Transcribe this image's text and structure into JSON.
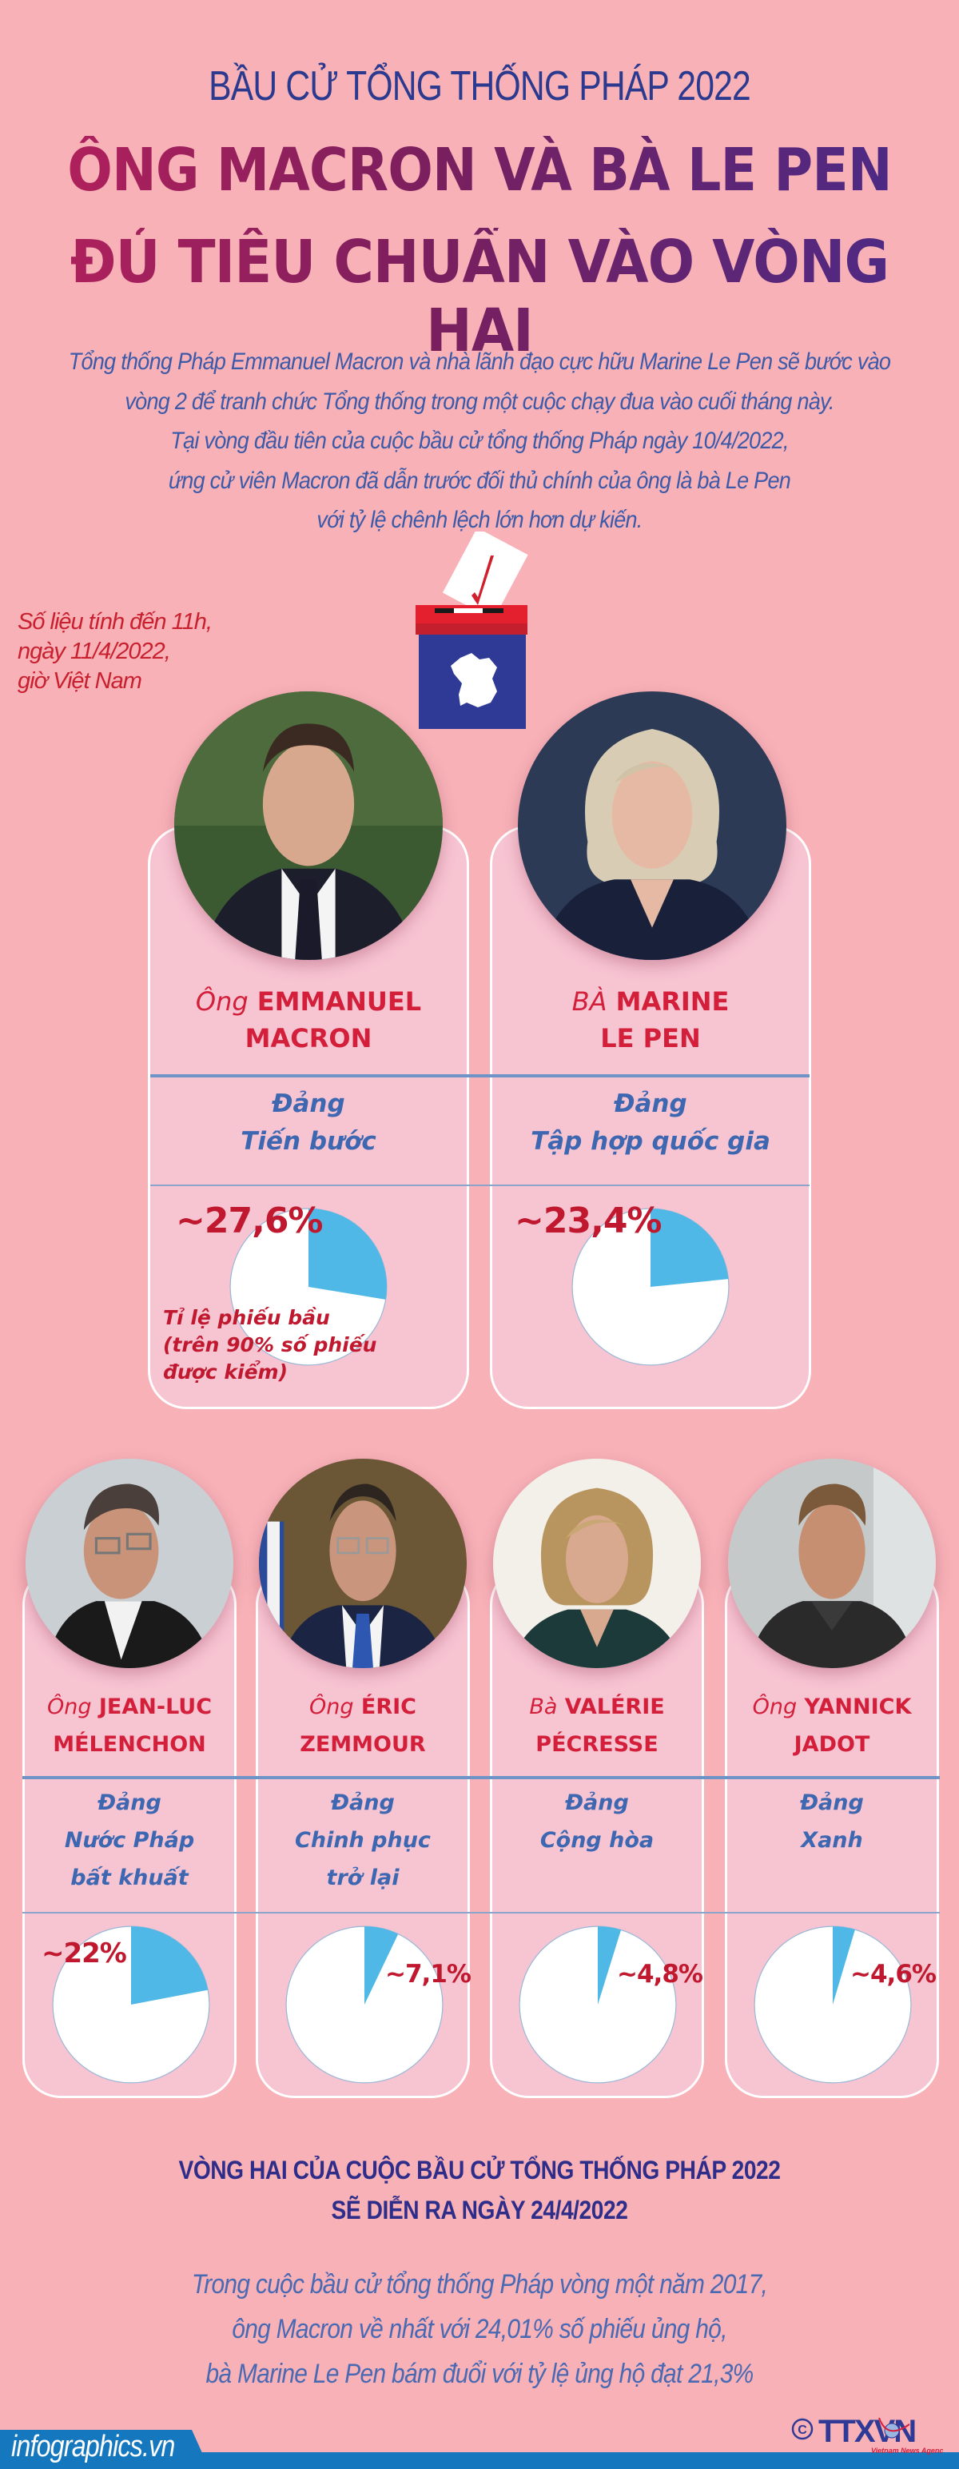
{
  "header": {
    "kicker": "BẦU CỬ TỔNG THỐNG PHÁP 2022",
    "headline_line1": "ÔNG MACRON VÀ BÀ LE PEN",
    "headline_line2": "ĐỦ TIÊU CHUẨN VÀO VÒNG HAI"
  },
  "intro": [
    "Tổng thống Pháp Emmanuel Macron và nhà lãnh đạo cực hữu Marine Le Pen sẽ bước vào",
    "vòng 2 để tranh chức Tổng thống trong một cuộc chạy đua vào cuối tháng này.",
    "Tại vòng đầu tiên của cuộc bầu cử tổng thống Pháp ngày 10/4/2022,",
    "ứng cử viên Macron đã dẫn trước đối thủ chính của ông là bà Le Pen",
    "với tỷ lệ chênh lệch lớn hơn dự kiến."
  ],
  "data_note": [
    "Số liệu tính đến 11h,",
    "ngày 11/4/2022,",
    "giờ Việt Nam"
  ],
  "icons": {
    "ballot_box": "ballot-box-france-icon",
    "check": "checkmark-icon",
    "copyright": "copyright-icon",
    "globe": "globe-icon"
  },
  "colors": {
    "background": "#f7b1b7",
    "card": "#f7c4d2",
    "pie_share": "#4fb8e6",
    "pie_rest": "#ffffff",
    "name_red": "#d31f3a",
    "party_blue": "#3d67b0",
    "footer_blue": "#1577bd"
  },
  "vote_label": "Tỉ lệ phiếu bầu (trên 90% số phiếu được kiểm)",
  "vote_label_lines": [
    "Tỉ lệ phiếu bầu",
    "(trên 90% số phiếu",
    "được kiểm)"
  ],
  "candidates": [
    {
      "honorific": "Ông",
      "name_line1": "EMMANUEL",
      "name_line2": "MACRON",
      "party_line0": "Đảng",
      "party_line1": "Tiến bước",
      "party_line2": "",
      "pct_label": "~27,6%",
      "pct": 27.6
    },
    {
      "honorific": "BÀ",
      "name_line1": "MARINE",
      "name_line2": "LE PEN",
      "party_line0": "Đảng",
      "party_line1": "Tập hợp quốc gia",
      "party_line2": "",
      "pct_label": "~23,4%",
      "pct": 23.4
    },
    {
      "honorific": "Ông",
      "name_line1": "JEAN-LUC",
      "name_line2": "MÉLENCHON",
      "party_line0": "Đảng",
      "party_line1": "Nước Pháp",
      "party_line2": "bất khuất",
      "pct_label": "~22%",
      "pct": 22
    },
    {
      "honorific": "Ông",
      "name_line1": "ÉRIC",
      "name_line2": "ZEMMOUR",
      "party_line0": "Đảng",
      "party_line1": "Chinh phục",
      "party_line2": "trở lại",
      "pct_label": "~7,1%",
      "pct": 7.1
    },
    {
      "honorific": "Bà",
      "name_line1": "VALÉRIE",
      "name_line2": "PÉCRESSE",
      "party_line0": "Đảng",
      "party_line1": "Cộng hòa",
      "party_line2": "",
      "pct_label": "~4,8%",
      "pct": 4.8
    },
    {
      "honorific": "Ông",
      "name_line1": "YANNICK",
      "name_line2": "JADOT",
      "party_line0": "Đảng",
      "party_line1": "Xanh",
      "party_line2": "",
      "pct_label": "~4,6%",
      "pct": 4.6
    }
  ],
  "round2": {
    "line1": "VÒNG HAI CỦA CUỘC BẦU CỬ TỔNG THỐNG PHÁP 2022",
    "line2": "SẼ DIỄN RA NGÀY 24/4/2022"
  },
  "history": [
    "Trong cuộc bầu cử tổng thống Pháp vòng một năm 2017,",
    "ông Macron về nhất với 24,01% số phiếu ủng hộ,",
    "bà Marine Le Pen bám đuổi với tỷ lệ ủng hộ đạt 21,3%"
  ],
  "footer": {
    "site": "infographics.vn",
    "copyright_symbol": "©",
    "agency_logo": "TTXVN",
    "agency_tagline": "Vietnam News Agency"
  },
  "chart_data": {
    "type": "pie",
    "title": "Tỉ lệ phiếu bầu (trên 90% số phiếu được kiểm)",
    "subtitle": "Số liệu tính đến 11h, ngày 11/4/2022, giờ Việt Nam",
    "categories": [
      "Emmanuel Macron",
      "Marine Le Pen",
      "Jean-Luc Mélenchon",
      "Éric Zemmour",
      "Valérie Pécresse",
      "Yannick Jadot"
    ],
    "values": [
      27.6,
      23.4,
      22,
      7.1,
      4.8,
      4.6
    ],
    "unit": "%",
    "parties": [
      "Tiến bước",
      "Tập hợp quốc gia",
      "Nước Pháp bất khuất",
      "Chinh phục trở lại",
      "Cộng hòa",
      "Xanh"
    ],
    "note": "Each candidate shown as an individual pie: share (blue) vs rest (white)",
    "comparison_2017": {
      "Macron": 24.01,
      "Le Pen": 21.3
    }
  }
}
